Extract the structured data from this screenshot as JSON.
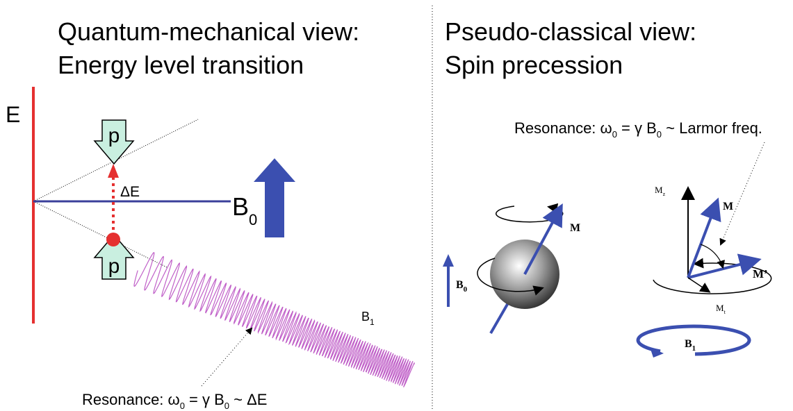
{
  "left": {
    "title": [
      "Quantum-mechanical view:",
      "Energy level transition"
    ],
    "energy_axis": "E",
    "p_upper": "p",
    "p_lower": "p",
    "delta_e": "ΔE",
    "b0": [
      "B",
      "0"
    ],
    "b1": [
      "B",
      "1"
    ],
    "resonance": [
      "Resonance: ω",
      "0",
      " = γ B",
      "0",
      " ~ ΔE"
    ]
  },
  "right": {
    "title": [
      "Pseudo-classical view:",
      "Spin precession"
    ],
    "resonance": [
      "Resonance: ω",
      "0",
      " = γ B",
      "0",
      " ~ Larmor freq."
    ],
    "b0": [
      "B",
      "0"
    ],
    "m_sphere": "M",
    "mz": [
      "M",
      "z"
    ],
    "m": "M",
    "m_prime": "M’",
    "mt": [
      "M",
      "t"
    ],
    "b1": [
      "B",
      "1"
    ]
  }
}
